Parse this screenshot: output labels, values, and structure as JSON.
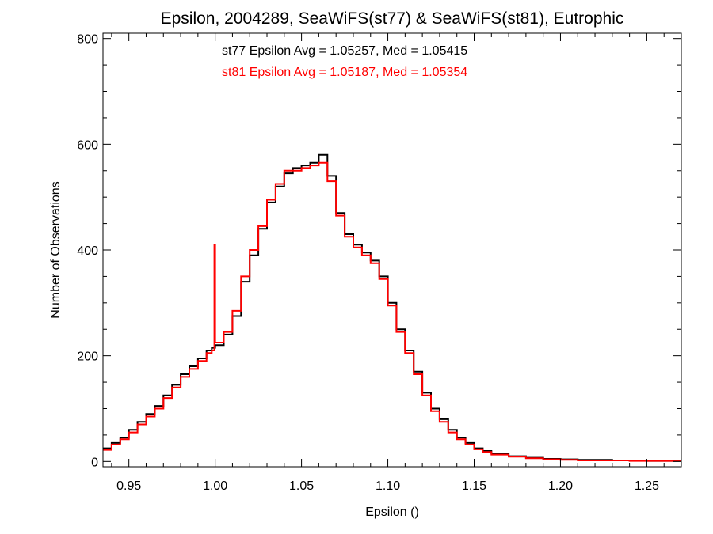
{
  "chart_data": {
    "type": "line",
    "title": "Epsilon, 2004289, SeaWiFS(st77) & SeaWiFS(st81), Eutrophic",
    "xlabel": "Epsilon ()",
    "ylabel": "Number of Observations",
    "xlim": [
      0.935,
      1.27
    ],
    "ylim": [
      -10,
      810
    ],
    "x_ticks": [
      "0.95",
      "1.00",
      "1.05",
      "1.10",
      "1.15",
      "1.20",
      "1.25"
    ],
    "y_ticks": [
      "0",
      "200",
      "400",
      "600",
      "800"
    ],
    "grid": false,
    "step": true,
    "annotations": [
      {
        "text": "st77 Epsilon Avg = 1.05257, Med = 1.05415",
        "color": "#000000"
      },
      {
        "text": "st81 Epsilon Avg = 1.05187, Med = 1.05354",
        "color": "#ff0000"
      }
    ],
    "series": [
      {
        "color": "#000000",
        "x": [
          0.935,
          0.94,
          0.945,
          0.95,
          0.955,
          0.96,
          0.965,
          0.97,
          0.975,
          0.98,
          0.985,
          0.99,
          0.995,
          0.998,
          1.0,
          1.005,
          1.01,
          1.015,
          1.02,
          1.025,
          1.03,
          1.035,
          1.04,
          1.045,
          1.05,
          1.055,
          1.06,
          1.065,
          1.07,
          1.075,
          1.08,
          1.085,
          1.09,
          1.095,
          1.1,
          1.105,
          1.11,
          1.115,
          1.12,
          1.125,
          1.13,
          1.135,
          1.14,
          1.145,
          1.15,
          1.155,
          1.16,
          1.17,
          1.18,
          1.19,
          1.2,
          1.21,
          1.22,
          1.23,
          1.24,
          1.25,
          1.26,
          1.27
        ],
        "y": [
          25,
          35,
          45,
          60,
          75,
          90,
          105,
          125,
          145,
          165,
          180,
          195,
          210,
          215,
          220,
          240,
          275,
          340,
          390,
          440,
          490,
          520,
          545,
          555,
          560,
          565,
          580,
          540,
          470,
          430,
          410,
          395,
          380,
          350,
          300,
          250,
          210,
          170,
          130,
          100,
          80,
          60,
          45,
          35,
          25,
          20,
          15,
          10,
          7,
          5,
          4,
          3,
          3,
          2,
          2,
          1,
          1,
          1
        ]
      },
      {
        "color": "#ff0000",
        "x": [
          0.935,
          0.94,
          0.945,
          0.95,
          0.955,
          0.96,
          0.965,
          0.97,
          0.975,
          0.98,
          0.985,
          0.99,
          0.995,
          0.998,
          0.9995,
          1.0,
          1.005,
          1.01,
          1.015,
          1.02,
          1.025,
          1.03,
          1.035,
          1.04,
          1.045,
          1.05,
          1.055,
          1.06,
          1.065,
          1.07,
          1.075,
          1.08,
          1.085,
          1.09,
          1.095,
          1.1,
          1.105,
          1.11,
          1.115,
          1.12,
          1.125,
          1.13,
          1.135,
          1.14,
          1.145,
          1.15,
          1.155,
          1.16,
          1.17,
          1.18,
          1.19,
          1.2,
          1.21,
          1.22,
          1.23,
          1.24,
          1.25,
          1.26,
          1.27
        ],
        "y": [
          22,
          32,
          42,
          55,
          70,
          85,
          100,
          120,
          140,
          160,
          175,
          190,
          205,
          210,
          410,
          225,
          245,
          285,
          350,
          400,
          445,
          495,
          525,
          550,
          550,
          555,
          560,
          565,
          530,
          465,
          425,
          405,
          390,
          375,
          345,
          295,
          245,
          205,
          165,
          125,
          95,
          75,
          55,
          42,
          32,
          23,
          18,
          13,
          9,
          6,
          4,
          3,
          2,
          2,
          2,
          1,
          1,
          1,
          1
        ]
      }
    ]
  }
}
